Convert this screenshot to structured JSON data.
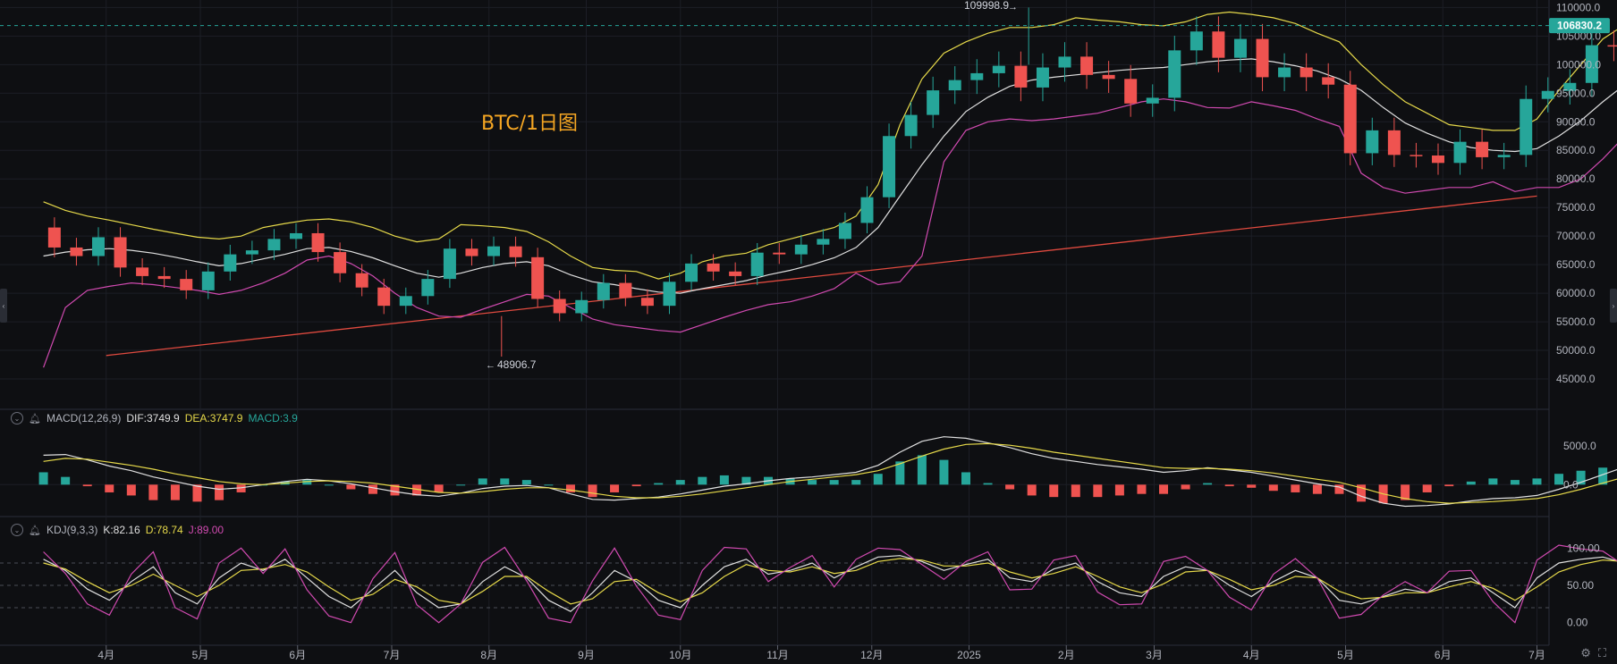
{
  "chart_data": {
    "type": "candlestick",
    "instrument": "BTC/1日图",
    "title": "BTC/1日图",
    "colors": {
      "up": "#26a69a",
      "down": "#ef5350",
      "boll_upper": "#e6d94a",
      "boll_mid": "#e0e0e0",
      "boll_lower": "#d04ab0",
      "trendline": "#e04a3f",
      "price_tag": "#26a69a",
      "macd_dif": "#e0e0e0",
      "macd_dea": "#e6d94a",
      "kdj_k": "#e0e0e0",
      "kdj_d": "#e6d94a",
      "kdj_j": "#d04ab0"
    },
    "x_labels": [
      "4月",
      "5月",
      "6月",
      "7月",
      "8月",
      "9月",
      "10月",
      "11月",
      "12月",
      "2025",
      "2月",
      "3月",
      "4月",
      "5月",
      "6月",
      "7月"
    ],
    "price_axis": {
      "ticks": [
        "110000.0",
        "105000.0",
        "100000.0",
        "95000.0",
        "90000.0",
        "85000.0",
        "80000.0",
        "75000.0",
        "70000.0",
        "65000.0",
        "60000.0",
        "55000.0",
        "50000.0",
        "45000.0"
      ],
      "ylim": [
        42500,
        111000
      ]
    },
    "last_price": "106830.2",
    "annotations": {
      "high_label": "109998.9",
      "low_label": "48906.7"
    },
    "trendline": {
      "from": [
        "2024-04-01",
        49100
      ],
      "to": [
        "2025-07-01",
        77000
      ]
    },
    "macd": {
      "name": "MACD(12,26,9)",
      "dif_label": "DIF:3749.9",
      "dea_label": "DEA:3747.9",
      "macd_label": "MACD:3.9",
      "ticks": [
        "5000.0",
        "0.0"
      ]
    },
    "kdj": {
      "name": "KDJ(9,3,3)",
      "k_label": "K:82.16",
      "d_label": "D:78.74",
      "j_label": "J:89.00",
      "ticks": [
        "100.00",
        "50.00",
        "0.00"
      ]
    },
    "series": [
      {
        "name": "close",
        "x_start": "2024-03-12",
        "step_days": 7,
        "values": [
          71500,
          68000,
          66500,
          69800,
          64500,
          63000,
          62500,
          60500,
          63800,
          66800,
          67500,
          69500,
          70500,
          67200,
          63500,
          61000,
          57800,
          59500,
          62500,
          67800,
          66500,
          68200,
          66300,
          59000,
          56500,
          58800,
          61800,
          59200,
          57800,
          62000,
          65200,
          63800,
          63000,
          67100,
          66800,
          68500,
          69500,
          72300,
          76800,
          87500,
          91200,
          95500,
          97300,
          98500,
          99800,
          96000,
          99500,
          101400,
          98200,
          97500,
          93200,
          94200,
          102500,
          105800,
          101200,
          104500,
          97800,
          99500,
          97800,
          96500,
          84500,
          88500,
          84200,
          84100,
          82800,
          86500,
          83800,
          84200,
          94000,
          95400,
          96800,
          103400,
          103200,
          104600,
          106830
        ]
      },
      {
        "name": "boll_upper",
        "x_start": "2024-03-12",
        "step_days": 7,
        "values": [
          76000,
          74500,
          73500,
          72800,
          72000,
          71200,
          70500,
          69800,
          69500,
          70000,
          71500,
          72200,
          72800,
          73000,
          72500,
          71500,
          70000,
          69000,
          69500,
          72000,
          71800,
          71500,
          70800,
          69000,
          66500,
          64500,
          64000,
          63800,
          62500,
          63500,
          65500,
          66500,
          67000,
          68500,
          69500,
          70500,
          71500,
          73500,
          79000,
          89500,
          97500,
          102000,
          104000,
          105500,
          106500,
          106500,
          107000,
          108200,
          107800,
          107500,
          107000,
          106800,
          107500,
          108800,
          109200,
          108800,
          108200,
          107200,
          105500,
          104000,
          100000,
          96500,
          93500,
          91500,
          89500,
          89000,
          88500,
          88500,
          90500,
          95500,
          100000,
          104500,
          107000,
          108500,
          110000
        ]
      },
      {
        "name": "boll_mid",
        "x_start": "2024-03-12",
        "step_days": 7,
        "values": [
          66500,
          67200,
          67600,
          67800,
          67500,
          67000,
          66300,
          65500,
          64800,
          65200,
          66000,
          66800,
          67800,
          68000,
          67300,
          66200,
          64800,
          63500,
          62800,
          63500,
          64500,
          65200,
          65500,
          64800,
          63200,
          62000,
          61500,
          60800,
          60200,
          60000,
          60800,
          61500,
          62200,
          63200,
          64000,
          65000,
          66200,
          68000,
          71500,
          77000,
          82500,
          87500,
          91800,
          94300,
          96200,
          97300,
          97800,
          98200,
          98600,
          99000,
          99300,
          99500,
          100000,
          100500,
          100800,
          101000,
          100500,
          99800,
          98900,
          97500,
          95500,
          92500,
          89800,
          88000,
          86500,
          85500,
          85000,
          84800,
          85300,
          87500,
          90200,
          93500,
          96500,
          98800,
          101500
        ]
      },
      {
        "name": "boll_lower",
        "x_start": "2024-03-12",
        "step_days": 7,
        "values": [
          47000,
          57500,
          60500,
          61200,
          61800,
          61500,
          61000,
          60500,
          59800,
          60500,
          61800,
          63500,
          65800,
          66500,
          65200,
          63000,
          60000,
          57500,
          56000,
          55800,
          57200,
          58500,
          59800,
          59500,
          57500,
          55500,
          54500,
          54000,
          53500,
          53200,
          54500,
          55800,
          57000,
          58000,
          58500,
          59500,
          60800,
          63500,
          61500,
          62000,
          66500,
          83000,
          88500,
          90000,
          90500,
          90200,
          90500,
          91000,
          91500,
          92500,
          93500,
          94000,
          93500,
          92500,
          92400,
          93500,
          92800,
          92000,
          90500,
          89200,
          81000,
          78500,
          77500,
          78000,
          78500,
          78500,
          79500,
          77800,
          78500,
          78500,
          80000,
          83500,
          87500,
          90500,
          93500
        ]
      },
      {
        "name": "macd_dif",
        "x_start": "2024-03-12",
        "step_days": 7,
        "values": [
          3800,
          3900,
          3200,
          2400,
          1800,
          1000,
          400,
          -200,
          -600,
          -400,
          0,
          400,
          700,
          500,
          100,
          -400,
          -900,
          -1300,
          -1500,
          -1100,
          -500,
          -200,
          -100,
          -400,
          -1200,
          -1900,
          -2000,
          -1800,
          -1600,
          -1200,
          -700,
          -200,
          100,
          500,
          800,
          1000,
          1300,
          1600,
          2500,
          4200,
          5600,
          6200,
          6000,
          5400,
          4800,
          4000,
          3400,
          3000,
          2600,
          2300,
          2000,
          1600,
          1800,
          2200,
          1900,
          1600,
          1100,
          600,
          100,
          -300,
          -1500,
          -2400,
          -2800,
          -2700,
          -2500,
          -2100,
          -1800,
          -1700,
          -1400,
          -600,
          300,
          1300,
          2300,
          3200,
          3750
        ]
      },
      {
        "name": "macd_dea",
        "x_start": "2024-03-12",
        "step_days": 7,
        "values": [
          3000,
          3400,
          3300,
          2900,
          2500,
          2000,
          1400,
          900,
          400,
          100,
          0,
          200,
          400,
          500,
          400,
          200,
          -200,
          -600,
          -1000,
          -1100,
          -900,
          -600,
          -400,
          -400,
          -700,
          -1100,
          -1500,
          -1700,
          -1700,
          -1500,
          -1200,
          -800,
          -400,
          0,
          400,
          700,
          1000,
          1300,
          1800,
          2700,
          3700,
          4600,
          5200,
          5300,
          5100,
          4700,
          4200,
          3800,
          3400,
          3000,
          2600,
          2200,
          2100,
          2100,
          2000,
          1800,
          1500,
          1100,
          700,
          300,
          -400,
          -1200,
          -1800,
          -2200,
          -2400,
          -2300,
          -2200,
          -2000,
          -1800,
          -1300,
          -600,
          200,
          1000,
          1900,
          3748
        ]
      },
      {
        "name": "kdj_k",
        "x_start": "2024-03-12",
        "step_days": 7,
        "values": [
          85,
          70,
          45,
          30,
          55,
          75,
          40,
          25,
          60,
          80,
          70,
          85,
          60,
          35,
          20,
          45,
          70,
          40,
          20,
          25,
          55,
          75,
          60,
          30,
          15,
          40,
          70,
          55,
          30,
          20,
          50,
          75,
          85,
          65,
          70,
          80,
          60,
          75,
          88,
          90,
          82,
          70,
          78,
          85,
          60,
          55,
          72,
          80,
          55,
          40,
          35,
          62,
          75,
          70,
          50,
          35,
          55,
          70,
          60,
          30,
          25,
          35,
          45,
          40,
          55,
          60,
          40,
          20,
          60,
          80,
          85,
          88,
          80,
          85,
          82
        ]
      },
      {
        "name": "kdj_d",
        "x_start": "2024-03-12",
        "step_days": 7,
        "values": [
          80,
          72,
          55,
          40,
          50,
          65,
          50,
          35,
          50,
          70,
          72,
          78,
          68,
          48,
          30,
          38,
          58,
          48,
          30,
          25,
          42,
          62,
          62,
          42,
          25,
          32,
          55,
          58,
          40,
          28,
          40,
          62,
          78,
          70,
          68,
          75,
          66,
          70,
          82,
          86,
          84,
          76,
          76,
          80,
          68,
          60,
          66,
          75,
          62,
          48,
          40,
          52,
          68,
          70,
          58,
          44,
          50,
          62,
          60,
          42,
          32,
          34,
          40,
          40,
          48,
          55,
          46,
          30,
          48,
          68,
          78,
          84,
          82,
          83,
          79
        ]
      },
      {
        "name": "kdj_j",
        "x_start": "2024-03-12",
        "step_days": 7,
        "values": [
          95,
          66,
          25,
          10,
          65,
          95,
          20,
          5,
          80,
          100,
          66,
          99,
          44,
          9,
          0,
          59,
          94,
          24,
          0,
          25,
          81,
          101,
          56,
          6,
          0,
          56,
          100,
          49,
          10,
          4,
          70,
          101,
          99,
          55,
          74,
          90,
          48,
          85,
          100,
          98,
          78,
          58,
          82,
          95,
          44,
          45,
          84,
          90,
          41,
          24,
          25,
          82,
          89,
          70,
          34,
          17,
          65,
          86,
          60,
          6,
          11,
          37,
          55,
          40,
          69,
          70,
          28,
          0,
          84,
          104,
          99,
          96,
          76,
          89,
          89
        ]
      }
    ]
  }
}
